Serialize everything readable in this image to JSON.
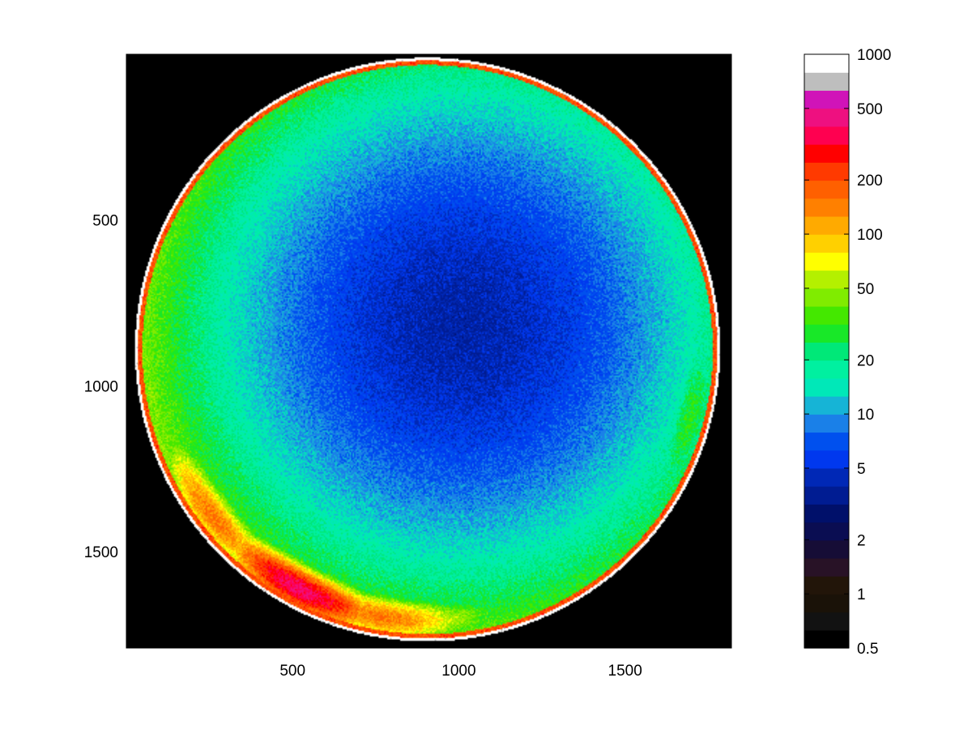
{
  "chart_data": {
    "type": "heatmap",
    "title": "",
    "xlabel": "",
    "ylabel": "",
    "xlim": [
      0,
      1820
    ],
    "ylim": [
      0,
      1790
    ],
    "y_axis_direction": "reversed (top = 0)",
    "x_ticks": [
      500,
      1000,
      1500
    ],
    "y_ticks": [
      500,
      1000,
      1500
    ],
    "x_tick_labels": [
      "500",
      "1000",
      "1500"
    ],
    "y_tick_labels": [
      "500",
      "1000",
      "1500"
    ],
    "image": {
      "description_values": "all-sky fisheye luminance map",
      "circle_center": [
        906,
        890
      ],
      "circle_radius": 880,
      "background_value": 0.5,
      "zenith_value": 4,
      "horizon_glow": [
        {
          "angle_deg": 118,
          "peak_value": 400
        },
        {
          "angle_deg": 100,
          "peak_value": 150
        },
        {
          "angle_deg": 142,
          "peak_value": 150
        },
        {
          "angle_deg": 90,
          "peak_value": 60
        },
        {
          "angle_deg": 15,
          "peak_value": 30
        }
      ]
    },
    "colorbar": {
      "scale": "log",
      "range": [
        0.5,
        1000
      ],
      "tick_values": [
        0.5,
        1,
        2,
        5,
        10,
        20,
        50,
        100,
        200,
        500,
        1000
      ],
      "tick_labels": [
        "0.5",
        "1",
        "2",
        "5",
        "10",
        "20",
        "50",
        "100",
        "200",
        "500",
        "1000"
      ],
      "colors_bottom_to_top": [
        "#000000",
        "#121212",
        "#1a1208",
        "#221509",
        "#281226",
        "#160d36",
        "#0a0d52",
        "#00106a",
        "#001c92",
        "#0028b6",
        "#0038ee",
        "#0050ee",
        "#1a80e8",
        "#16b4d6",
        "#00e8b8",
        "#00f0a0",
        "#00e878",
        "#18e828",
        "#44e800",
        "#80ec00",
        "#b4f000",
        "#ffff00",
        "#ffd000",
        "#ffaa00",
        "#ff8000",
        "#ff6000",
        "#ff3a00",
        "#ff0000",
        "#ff0050",
        "#ee1080",
        "#d014b8",
        "#bebebe",
        "#ffffff"
      ]
    }
  }
}
